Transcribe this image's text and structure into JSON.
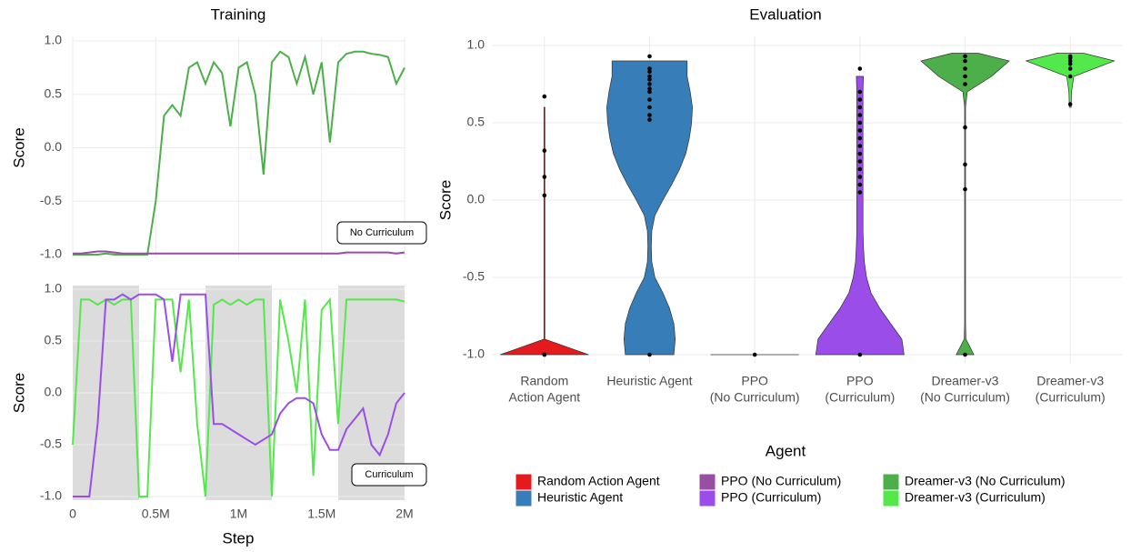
{
  "chart_data": [
    {
      "type": "line",
      "title": "Training",
      "ylabel": "Score",
      "annotation": "No Curriculum",
      "grid": true,
      "x": [
        0,
        50000,
        100000,
        150000,
        200000,
        250000,
        300000,
        350000,
        400000,
        450000,
        500000,
        550000,
        600000,
        650000,
        700000,
        750000,
        800000,
        850000,
        900000,
        950000,
        1000000,
        1050000,
        1100000,
        1150000,
        1200000,
        1250000,
        1300000,
        1350000,
        1400000,
        1450000,
        1500000,
        1550000,
        1600000,
        1650000,
        1700000,
        1750000,
        1800000,
        1850000,
        1900000,
        1950000,
        2000000
      ],
      "xlim": [
        0,
        2000000
      ],
      "xticks": [
        {
          "value": 0,
          "label": "0"
        },
        {
          "value": 500000,
          "label": "0.5M"
        },
        {
          "value": 1000000,
          "label": "1M"
        },
        {
          "value": 1500000,
          "label": "1.5M"
        },
        {
          "value": 2000000,
          "label": "2M"
        }
      ],
      "ylim": [
        -1,
        1
      ],
      "yticks": [
        {
          "value": -1,
          "label": "-1.0"
        },
        -0.5,
        {
          "value": 0,
          "label": "0.0"
        },
        0.5,
        {
          "value": 1,
          "label": "1.0"
        }
      ],
      "series": [
        {
          "name": "Dreamer-v3 (No Curriculum)",
          "color": "#4daf4a",
          "values": [
            -1,
            -1,
            -1,
            -1,
            -0.99,
            -1,
            -1,
            -1,
            -1,
            -1,
            -0.5,
            0.3,
            0.4,
            0.3,
            0.75,
            0.8,
            0.6,
            0.8,
            0.7,
            0.2,
            0.75,
            0.8,
            0.5,
            -0.25,
            0.8,
            0.9,
            0.85,
            0.6,
            0.85,
            0.5,
            0.8,
            0.05,
            0.8,
            0.88,
            0.9,
            0.9,
            0.88,
            0.87,
            0.85,
            0.6,
            0.75
          ]
        },
        {
          "name": "PPO (No Curriculum)",
          "color": "#984ea3",
          "values": [
            -0.99,
            -0.99,
            -0.98,
            -0.97,
            -0.97,
            -0.98,
            -0.99,
            -0.99,
            -0.99,
            -0.99,
            -0.99,
            -0.99,
            -0.99,
            -0.99,
            -0.99,
            -0.99,
            -0.99,
            -0.99,
            -0.99,
            -0.99,
            -0.99,
            -0.99,
            -0.99,
            -0.99,
            -0.99,
            -0.99,
            -0.99,
            -0.99,
            -0.99,
            -0.99,
            -0.99,
            -0.99,
            -0.99,
            -0.98,
            -0.98,
            -0.98,
            -0.98,
            -0.98,
            -0.98,
            -0.99,
            -0.98
          ]
        }
      ]
    },
    {
      "type": "line",
      "xlabel": "Step",
      "ylabel": "Score",
      "annotation": "Curriculum",
      "grid": true,
      "bands": [
        [
          0,
          400000
        ],
        [
          800000,
          1200000
        ],
        [
          1600000,
          2000000
        ]
      ],
      "x": [
        0,
        50000,
        100000,
        150000,
        200000,
        250000,
        300000,
        350000,
        400000,
        450000,
        500000,
        550000,
        600000,
        650000,
        700000,
        750000,
        800000,
        850000,
        900000,
        950000,
        1000000,
        1050000,
        1100000,
        1150000,
        1200000,
        1250000,
        1300000,
        1350000,
        1400000,
        1450000,
        1500000,
        1550000,
        1600000,
        1650000,
        1700000,
        1750000,
        1800000,
        1850000,
        1900000,
        1950000,
        2000000
      ],
      "xlim": [
        0,
        2000000
      ],
      "xticks": [
        {
          "value": 0,
          "label": "0"
        },
        {
          "value": 500000,
          "label": "0.5M"
        },
        {
          "value": 1000000,
          "label": "1M"
        },
        {
          "value": 1500000,
          "label": "1.5M"
        },
        {
          "value": 2000000,
          "label": "2M"
        }
      ],
      "ylim": [
        -1,
        1
      ],
      "yticks": [
        {
          "value": -1,
          "label": "-1.0"
        },
        -0.5,
        {
          "value": 0,
          "label": "0.0"
        },
        0.5,
        {
          "value": 1,
          "label": "1.0"
        }
      ],
      "series": [
        {
          "name": "Dreamer-v3 (Curriculum)",
          "color": "#53e94a",
          "values": [
            -0.5,
            0.9,
            0.9,
            0.85,
            0.9,
            0.85,
            0.9,
            0.9,
            -1,
            -1,
            0.9,
            0.9,
            0.9,
            0.2,
            0.9,
            -0.3,
            -1,
            0.85,
            0.9,
            0.85,
            0.9,
            0.85,
            0.9,
            0.9,
            -1,
            0.9,
            0.5,
            0,
            0.9,
            -0.8,
            0.8,
            0.9,
            -0.3,
            0.9,
            0.9,
            0.9,
            0.9,
            0.9,
            0.9,
            0.9,
            0.88
          ]
        },
        {
          "name": "PPO (Curriculum)",
          "color": "#9b4dea",
          "values": [
            -1,
            -1,
            -1,
            -0.3,
            0.9,
            0.9,
            0.95,
            0.9,
            0.95,
            0.95,
            0.95,
            0.9,
            0.3,
            0.95,
            0.95,
            0.95,
            0.95,
            -0.3,
            -0.3,
            -0.35,
            -0.4,
            -0.45,
            -0.5,
            -0.45,
            -0.4,
            -0.2,
            -0.1,
            -0.05,
            -0.05,
            -0.1,
            -0.4,
            -0.55,
            -0.55,
            -0.35,
            -0.25,
            -0.15,
            -0.5,
            -0.6,
            -0.4,
            -0.1,
            0
          ]
        }
      ]
    },
    {
      "type": "violin",
      "title": "Evaluation",
      "ylabel": "Score",
      "legend_title": "Agent",
      "grid": true,
      "categories": [
        [
          "Random",
          "Action Agent"
        ],
        [
          "Heuristic Agent"
        ],
        [
          "PPO",
          "(No Curriculum)"
        ],
        [
          "PPO",
          "(Curriculum)"
        ],
        [
          "Dreamer-v3",
          "(No Curriculum)"
        ],
        [
          "Dreamer-v3",
          "(Curriculum)"
        ]
      ],
      "ylim": [
        -1,
        1
      ],
      "yticks": [
        {
          "value": -1,
          "label": "-1.0"
        },
        -0.5,
        {
          "value": 0,
          "label": "0.0"
        },
        0.5,
        {
          "value": 1,
          "label": "1.0"
        }
      ],
      "density_y": [
        -1,
        -0.9,
        -0.8,
        -0.7,
        -0.6,
        -0.5,
        -0.4,
        -0.3,
        -0.2,
        -0.1,
        0,
        0.1,
        0.2,
        0.3,
        0.4,
        0.5,
        0.6,
        0.7,
        0.8,
        0.9,
        0.95
      ],
      "series": [
        {
          "name": "Random Action Agent",
          "color": "#e41a1c",
          "points": [
            -1,
            -1,
            0.03,
            0.15,
            0.32,
            0.67
          ],
          "density": [
            1,
            0.01,
            0.01,
            0.01,
            0.01,
            0.01,
            0.01,
            0.01,
            0.01,
            0.01,
            0.01,
            0.01,
            0.01,
            0.01,
            0.01,
            0.01,
            0.01,
            null,
            null,
            null,
            null
          ]
        },
        {
          "name": "Heuristic Agent",
          "color": "#377eb8",
          "points": [
            -1,
            0.52,
            0.55,
            0.6,
            0.65,
            0.7,
            0.72,
            0.75,
            0.78,
            0.8,
            0.83,
            0.85,
            0.93
          ],
          "density": [
            0.55,
            0.58,
            0.55,
            0.45,
            0.3,
            0.12,
            0.05,
            0.04,
            0.05,
            0.12,
            0.3,
            0.5,
            0.68,
            0.82,
            0.9,
            0.95,
            0.97,
            0.92,
            0.85,
            0.85,
            null
          ]
        },
        {
          "name": "PPO (No Curriculum)",
          "color": "#984ea3",
          "points": [
            -1
          ],
          "density": [
            1,
            null,
            null,
            null,
            null,
            null,
            null,
            null,
            null,
            null,
            null,
            null,
            null,
            null,
            null,
            null,
            null,
            null,
            null,
            null,
            null
          ]
        },
        {
          "name": "PPO (Curriculum)",
          "color": "#9b4dea",
          "points": [
            -1,
            0.05,
            0.1,
            0.15,
            0.2,
            0.25,
            0.3,
            0.35,
            0.4,
            0.45,
            0.5,
            0.55,
            0.6,
            0.65,
            0.7,
            0.85
          ],
          "density": [
            1,
            0.95,
            0.7,
            0.45,
            0.25,
            0.15,
            0.1,
            0.08,
            0.07,
            0.07,
            0.07,
            0.07,
            0.07,
            0.07,
            0.07,
            0.07,
            0.07,
            0.07,
            0.08,
            null,
            null
          ]
        },
        {
          "name": "Dreamer-v3 (No Curriculum)",
          "color": "#4daf4a",
          "points": [
            -1,
            0.07,
            0.23,
            0.47,
            0.75,
            0.8,
            0.85,
            0.9,
            0.93
          ],
          "density": [
            0.2,
            0.02,
            0.01,
            0.01,
            0.01,
            0.01,
            0.01,
            0.01,
            0.01,
            0.01,
            0.01,
            0.01,
            0.01,
            0.01,
            0.01,
            0.01,
            0.01,
            0.05,
            0.6,
            1,
            0.3
          ]
        },
        {
          "name": "Dreamer-v3 (Curriculum)",
          "color": "#53e94a",
          "points": [
            0.62,
            0.8,
            0.85,
            0.88,
            0.9,
            0.92,
            0.93
          ],
          "density": [
            null,
            null,
            null,
            null,
            null,
            null,
            null,
            null,
            null,
            null,
            null,
            null,
            null,
            null,
            null,
            null,
            0.02,
            0.03,
            0.08,
            1,
            0.3
          ]
        }
      ]
    }
  ]
}
